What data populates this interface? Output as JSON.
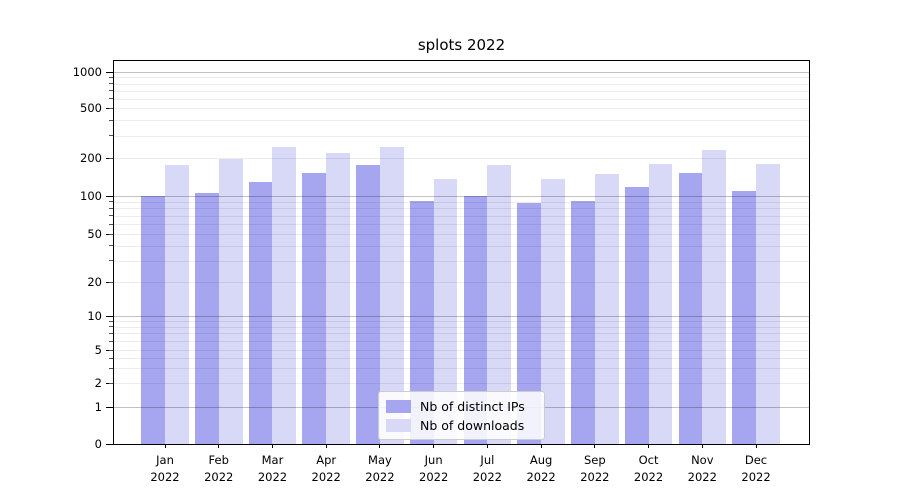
{
  "title": "splots 2022",
  "chart_data": {
    "type": "bar",
    "title": "splots 2022",
    "categories": [
      "Jan 2022",
      "Feb 2022",
      "Mar 2022",
      "Apr 2022",
      "May 2022",
      "Jun 2022",
      "Jul 2022",
      "Aug 2022",
      "Sep 2022",
      "Oct 2022",
      "Nov 2022",
      "Dec 2022"
    ],
    "series": [
      {
        "name": "Nb of distinct IPs",
        "color": "#a6a6f0",
        "values": [
          100,
          106,
          130,
          152,
          176,
          91,
          100,
          88,
          91,
          118,
          152,
          109
        ]
      },
      {
        "name": "Nb of downloads",
        "color": "#d8d8f7",
        "values": [
          177,
          198,
          245,
          220,
          245,
          136,
          175,
          137,
          150,
          180,
          233,
          180
        ]
      }
    ],
    "xlabel": "",
    "ylabel": "",
    "yscale": "symlog",
    "y_tick_values": [
      0,
      1,
      2,
      5,
      10,
      20,
      50,
      100,
      200,
      500,
      1000
    ],
    "y_tick_labels": [
      "0",
      "1",
      "2",
      "5",
      "10",
      "20",
      "50",
      "100",
      "200",
      "500",
      "1000"
    ],
    "ylim": [
      0,
      1250
    ],
    "grid": "both",
    "legend_position": "lower center"
  },
  "colors": {
    "major_grid": "#c2c2c2",
    "minor_grid": "#ebebeb",
    "spine": "#000000",
    "text": "#000000",
    "legend_border": "#cccccc"
  }
}
